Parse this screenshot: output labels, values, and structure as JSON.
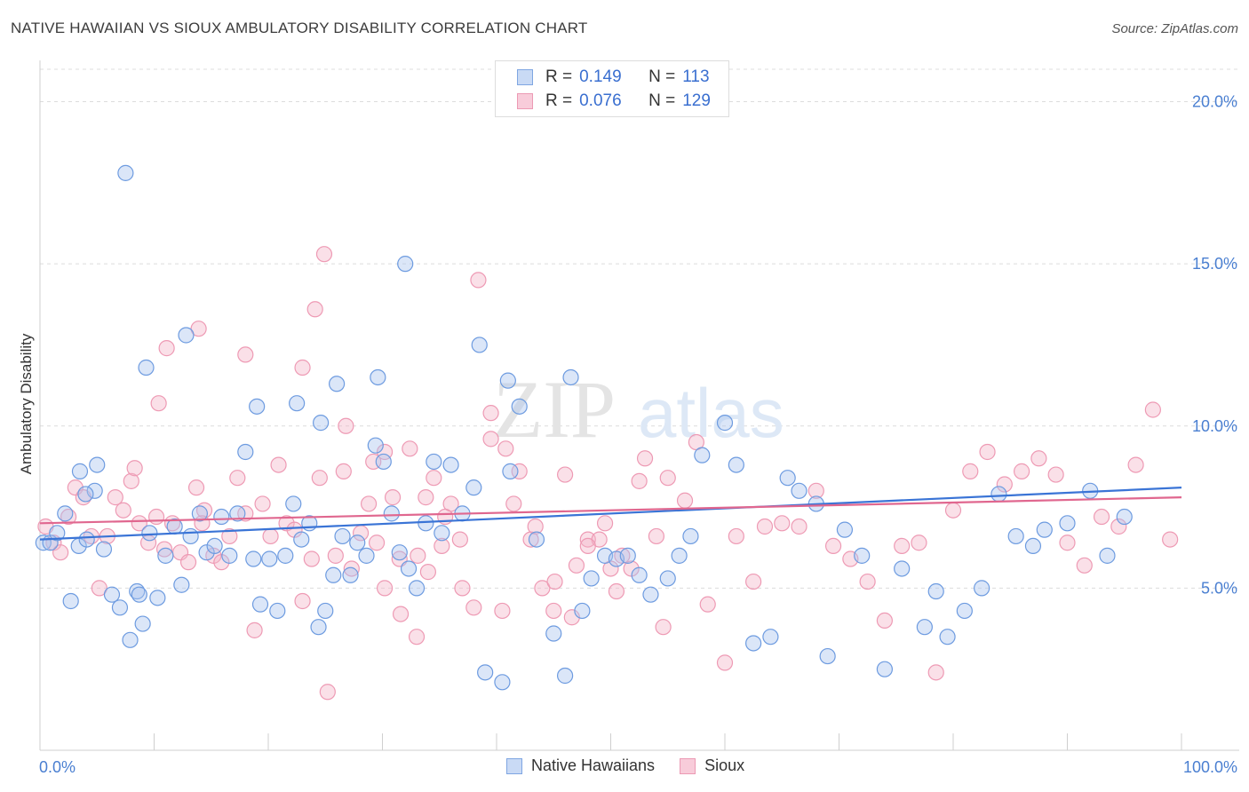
{
  "title": "NATIVE HAWAIIAN VS SIOUX AMBULATORY DISABILITY CORRELATION CHART",
  "source": "Source: ZipAtlas.com",
  "watermark": {
    "zip": "ZIP",
    "atlas": "atlas"
  },
  "legend": {
    "rows": [
      {
        "r_label": "R =",
        "r_value": "0.149",
        "n_label": "N =",
        "n_value": "113",
        "color": "#a9c4ee"
      },
      {
        "r_label": "R =",
        "r_value": "0.076",
        "n_label": "N =",
        "n_value": "129",
        "color": "#f4b6c9"
      }
    ]
  },
  "bottom_legend": {
    "series1": "Native Hawaiians",
    "series2": "Sioux"
  },
  "chart_data": {
    "type": "scatter",
    "xlabel": "",
    "ylabel": "Ambulatory Disability",
    "xlim": [
      0,
      100
    ],
    "ylim": [
      0,
      21
    ],
    "x_tick_labels": [
      "0.0%",
      "100.0%"
    ],
    "y_ticks": [
      5,
      10,
      15,
      20
    ],
    "y_tick_labels": [
      "5.0%",
      "10.0%",
      "15.0%",
      "20.0%"
    ],
    "grid": true,
    "legend_position": "top-center",
    "series": [
      {
        "name": "Native Hawaiians",
        "color": "#6d9be0",
        "fill": "#a9c4ee",
        "trend": {
          "x": [
            0,
            100
          ],
          "y": [
            6.5,
            8.1
          ],
          "color": "#3a74d6"
        },
        "x": [
          0.3,
          0.9,
          1.5,
          2.2,
          2.7,
          3.4,
          4.1,
          4.8,
          5.6,
          6.3,
          7.0,
          7.9,
          8.5,
          9.0,
          9.6,
          10.3,
          11.0,
          11.8,
          12.4,
          13.2,
          14.0,
          14.6,
          15.3,
          15.9,
          16.6,
          17.3,
          18.0,
          18.7,
          19.3,
          20.1,
          20.8,
          21.5,
          22.2,
          22.9,
          23.6,
          24.4,
          25.0,
          25.7,
          26.5,
          27.2,
          27.8,
          28.6,
          29.4,
          30.1,
          30.8,
          31.5,
          32.3,
          33.0,
          33.8,
          34.5,
          35.2,
          36.0,
          37.0,
          38.0,
          39.0,
          40.5,
          41.2,
          42.0,
          43.5,
          45.0,
          46.5,
          47.5,
          48.3,
          49.5,
          50.5,
          51.5,
          52.5,
          53.5,
          55.0,
          56.0,
          57.0,
          58.0,
          60.0,
          61.0,
          62.5,
          64.0,
          65.5,
          66.5,
          68.0,
          69.0,
          70.5,
          72.0,
          74.0,
          75.5,
          77.5,
          78.5,
          79.5,
          81.0,
          82.5,
          84.0,
          85.5,
          87.0,
          88.0,
          90.0,
          92.0,
          93.5,
          95.0,
          4.0,
          3.5,
          5.0,
          8.7,
          9.3,
          7.5,
          12.8,
          19.0,
          22.5,
          24.6,
          26.0,
          29.6,
          32.0,
          38.5,
          41.0,
          46.0
        ],
        "y": [
          6.4,
          6.4,
          6.7,
          7.3,
          4.6,
          6.3,
          6.5,
          8.0,
          6.2,
          4.8,
          4.4,
          3.4,
          4.9,
          3.9,
          6.7,
          4.7,
          6.0,
          6.9,
          5.1,
          6.6,
          7.3,
          6.1,
          6.3,
          7.2,
          6.0,
          7.3,
          9.2,
          5.9,
          4.5,
          5.9,
          4.3,
          6.0,
          7.6,
          6.5,
          7.0,
          3.8,
          4.3,
          5.4,
          6.6,
          5.4,
          6.4,
          6.0,
          9.4,
          8.9,
          7.3,
          6.1,
          5.6,
          5.0,
          7.0,
          8.9,
          6.7,
          8.8,
          7.3,
          8.1,
          2.4,
          2.1,
          8.6,
          10.6,
          6.5,
          3.6,
          11.5,
          4.3,
          5.3,
          6.0,
          5.9,
          6.0,
          5.4,
          4.8,
          5.3,
          6.0,
          6.6,
          9.1,
          10.1,
          8.8,
          3.3,
          3.5,
          8.4,
          8.0,
          7.6,
          2.9,
          6.8,
          6.0,
          2.5,
          5.6,
          3.8,
          4.9,
          3.5,
          4.3,
          5.0,
          7.9,
          6.6,
          6.3,
          6.8,
          7.0,
          8.0,
          6.0,
          7.2,
          7.9,
          8.6,
          8.8,
          4.8,
          11.8,
          17.8,
          12.8,
          10.6,
          10.7,
          10.1,
          11.3,
          11.5,
          15.0,
          12.5,
          11.4,
          2.3
        ]
      },
      {
        "name": "Sioux",
        "color": "#ee9ab4",
        "fill": "#f4b6c9",
        "trend": {
          "x": [
            0,
            100
          ],
          "y": [
            7.0,
            7.8
          ],
          "color": "#e0678f"
        },
        "x": [
          0.5,
          1.2,
          1.8,
          2.5,
          3.1,
          3.8,
          4.5,
          5.2,
          5.9,
          6.6,
          7.3,
          8.0,
          8.7,
          9.5,
          10.2,
          10.9,
          11.6,
          12.3,
          13.0,
          13.7,
          14.4,
          15.2,
          15.9,
          16.6,
          17.3,
          18.0,
          18.8,
          19.5,
          20.2,
          20.9,
          21.6,
          22.3,
          23.0,
          23.8,
          24.5,
          25.2,
          25.9,
          26.6,
          27.3,
          28.1,
          28.8,
          29.5,
          30.2,
          30.9,
          31.6,
          32.4,
          33.1,
          33.8,
          34.5,
          35.2,
          36.0,
          37.0,
          38.0,
          39.5,
          40.5,
          41.5,
          43.0,
          44.0,
          45.0,
          46.0,
          47.0,
          48.0,
          49.0,
          50.0,
          51.0,
          52.5,
          54.0,
          55.0,
          56.5,
          57.5,
          58.5,
          60.0,
          61.0,
          62.5,
          63.5,
          65.0,
          66.5,
          68.0,
          69.5,
          71.0,
          72.5,
          74.0,
          75.5,
          77.0,
          78.5,
          80.0,
          81.5,
          83.0,
          84.5,
          86.0,
          87.5,
          89.0,
          90.0,
          91.5,
          93.0,
          94.5,
          96.0,
          97.5,
          99.0,
          14.2,
          10.4,
          8.3,
          11.1,
          13.9,
          18.0,
          23.0,
          24.1,
          24.9,
          26.8,
          29.2,
          30.2,
          31.5,
          33.0,
          34.0,
          35.5,
          36.8,
          38.4,
          39.5,
          40.8,
          42.0,
          43.4,
          45.1,
          46.6,
          48.0,
          49.5,
          50.5,
          51.8,
          53.0,
          54.6
        ],
        "y": [
          6.9,
          6.4,
          6.1,
          7.2,
          8.1,
          7.8,
          6.6,
          5.0,
          6.6,
          7.8,
          7.4,
          8.3,
          7.0,
          6.4,
          7.2,
          6.2,
          7.0,
          6.1,
          5.8,
          8.1,
          7.4,
          6.0,
          5.8,
          6.6,
          8.4,
          7.3,
          3.7,
          7.6,
          6.6,
          8.8,
          7.0,
          6.8,
          4.6,
          5.9,
          8.4,
          1.8,
          6.0,
          8.6,
          5.6,
          6.7,
          7.6,
          6.4,
          5.0,
          7.8,
          4.2,
          9.3,
          6.0,
          7.8,
          8.4,
          6.3,
          7.6,
          5.0,
          4.4,
          9.6,
          4.3,
          7.6,
          6.5,
          5.0,
          4.3,
          8.5,
          5.7,
          6.5,
          6.5,
          5.6,
          6.0,
          8.3,
          6.6,
          8.4,
          7.7,
          9.5,
          4.5,
          2.7,
          6.6,
          5.2,
          6.9,
          7.0,
          6.9,
          8.0,
          6.3,
          5.9,
          5.2,
          4.0,
          6.3,
          6.4,
          2.4,
          7.4,
          8.6,
          9.2,
          8.2,
          8.6,
          9.0,
          8.5,
          6.4,
          5.7,
          7.2,
          6.9,
          8.8,
          10.5,
          6.5,
          7.0,
          10.7,
          8.7,
          12.4,
          13.0,
          12.2,
          11.8,
          13.6,
          15.3,
          10.0,
          8.9,
          9.2,
          5.9,
          3.5,
          5.5,
          7.2,
          6.5,
          14.5,
          10.4,
          9.3,
          8.6,
          6.9,
          5.2,
          4.1,
          6.3,
          7.0,
          4.9,
          5.6,
          9.0,
          3.8
        ]
      }
    ]
  }
}
